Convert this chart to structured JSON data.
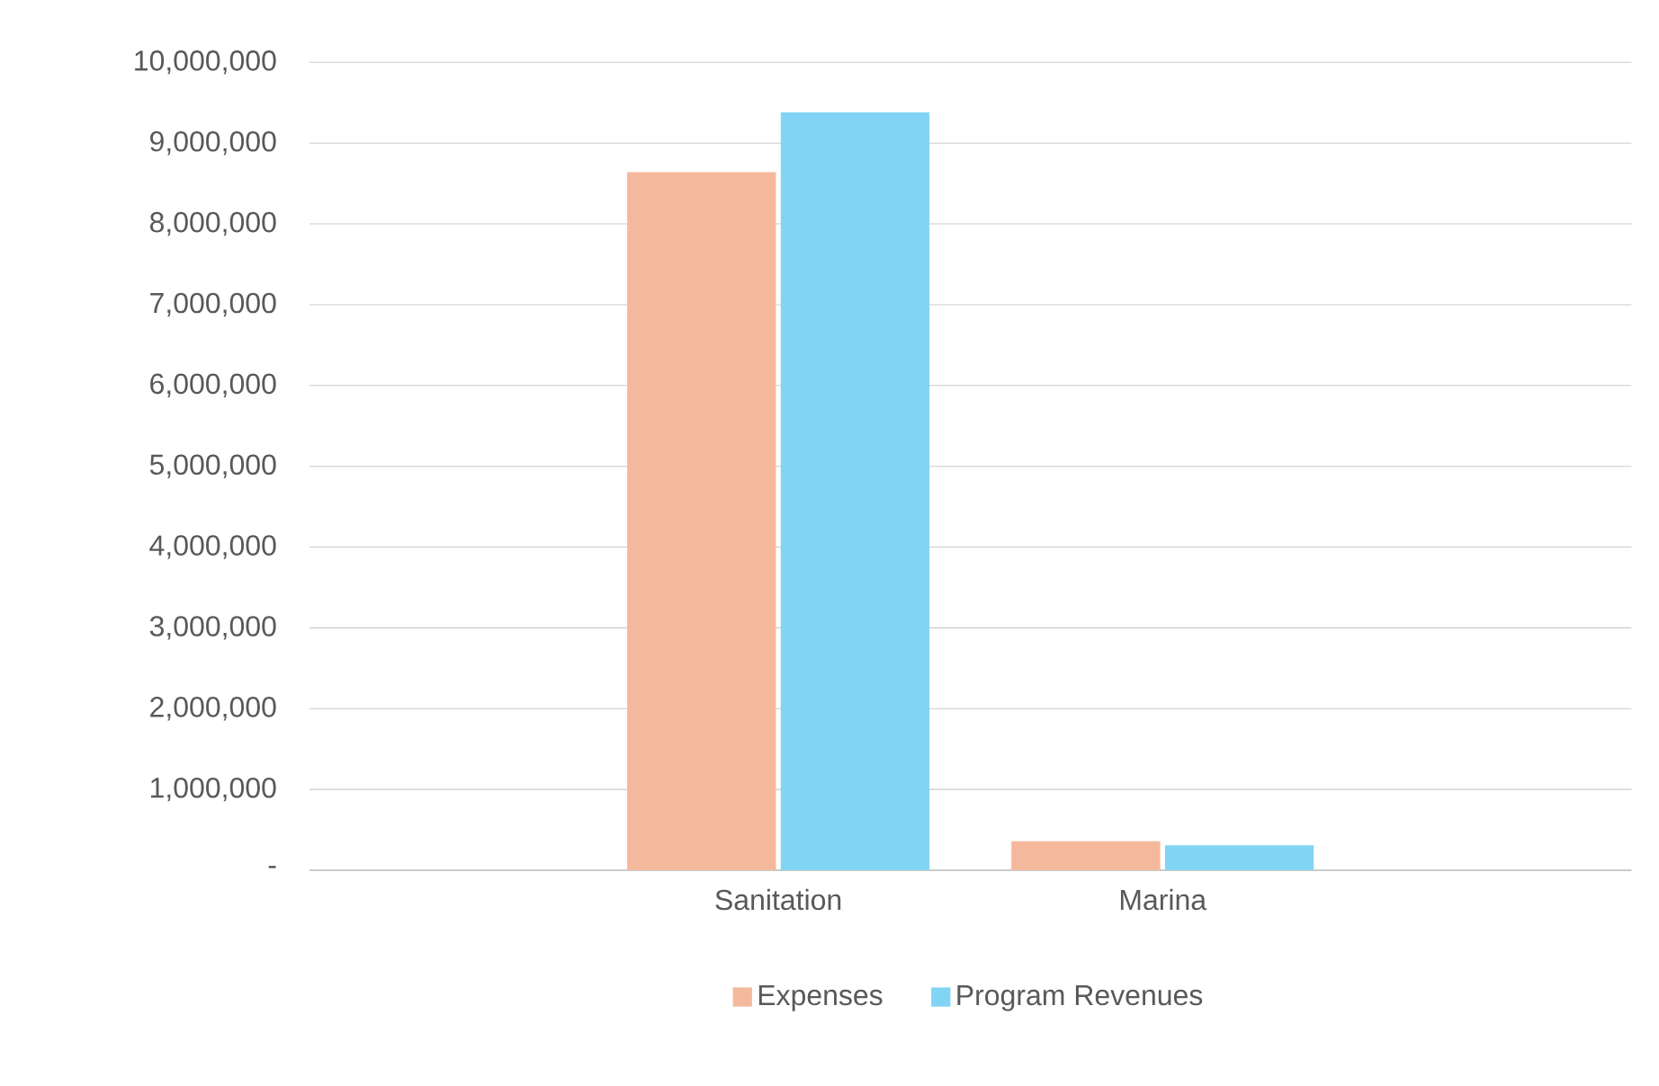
{
  "chart_data": {
    "type": "bar",
    "categories": [
      "Sanitation",
      "Marina"
    ],
    "series": [
      {
        "name": "Expenses",
        "color": "#f4b99c",
        "values": [
          8640000,
          360000
        ]
      },
      {
        "name": "Program Revenues",
        "color": "#82d4f5",
        "values": [
          9380000,
          310000
        ]
      }
    ],
    "ylim": [
      0,
      10000000
    ],
    "yticks": [
      {
        "value": 0,
        "label": "-"
      },
      {
        "value": 1000000,
        "label": "1,000,000"
      },
      {
        "value": 2000000,
        "label": "2,000,000"
      },
      {
        "value": 3000000,
        "label": "3,000,000"
      },
      {
        "value": 4000000,
        "label": "4,000,000"
      },
      {
        "value": 5000000,
        "label": "5,000,000"
      },
      {
        "value": 6000000,
        "label": "6,000,000"
      },
      {
        "value": 7000000,
        "label": "7,000,000"
      },
      {
        "value": 8000000,
        "label": "8,000,000"
      },
      {
        "value": 9000000,
        "label": "9,000,000"
      },
      {
        "value": 10000000,
        "label": "10,000,000"
      }
    ],
    "grid": "y",
    "legend": "bottom"
  }
}
